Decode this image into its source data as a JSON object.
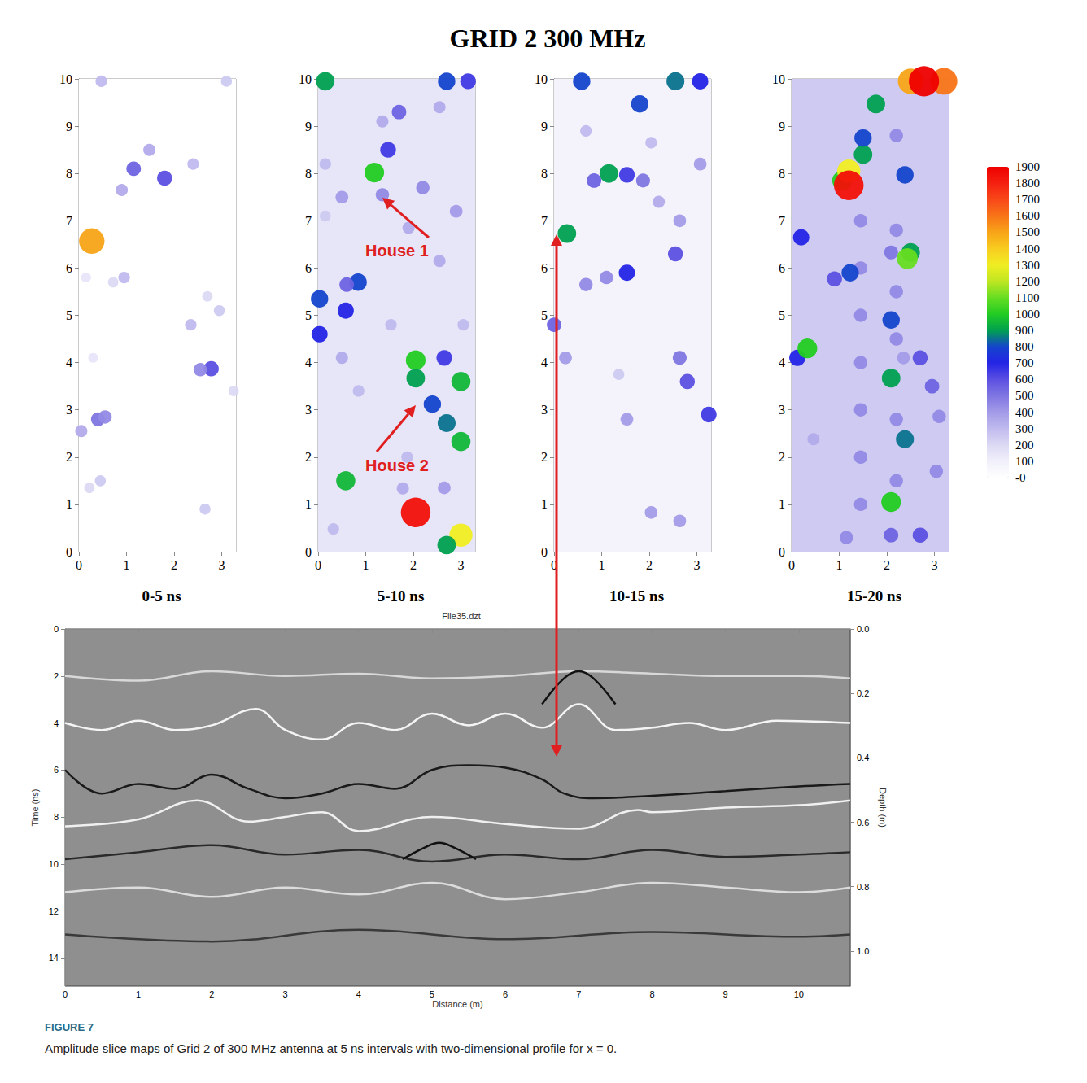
{
  "title": "GRID 2 300 MHz",
  "color_bar": {
    "range": [
      0,
      1900
    ],
    "ticks": [
      1900,
      1800,
      1700,
      1600,
      1500,
      1400,
      1300,
      1200,
      1100,
      1000,
      900,
      800,
      700,
      600,
      500,
      400,
      300,
      200,
      100,
      {
        "value": 0,
        "label": "-0"
      }
    ]
  },
  "chart_data": [
    {
      "type": "heatmap",
      "title": "0-5 ns",
      "xlim": [
        0,
        3.3
      ],
      "ylim": [
        0,
        10
      ],
      "xticks": [
        0,
        1,
        2,
        3
      ],
      "yticks": [
        0,
        1,
        2,
        3,
        4,
        5,
        6,
        7,
        8,
        9,
        10
      ],
      "background": 0,
      "points": [
        [
          0.27,
          6.57,
          1500
        ],
        [
          1.15,
          8.1,
          550
        ],
        [
          1.8,
          7.9,
          600
        ],
        [
          1.48,
          8.5,
          350
        ],
        [
          0.9,
          7.65,
          350
        ],
        [
          2.4,
          8.2,
          300
        ],
        [
          2.78,
          3.87,
          600
        ],
        [
          2.55,
          3.85,
          450
        ],
        [
          0.4,
          2.8,
          500
        ],
        [
          0.05,
          2.55,
          350
        ],
        [
          0.55,
          2.85,
          450
        ],
        [
          0.45,
          1.5,
          250
        ],
        [
          0.22,
          1.35,
          200
        ],
        [
          0.95,
          5.8,
          300
        ],
        [
          0.72,
          5.7,
          200
        ],
        [
          2.35,
          4.8,
          300
        ],
        [
          2.95,
          5.1,
          250
        ],
        [
          2.7,
          5.4,
          200
        ],
        [
          2.65,
          0.9,
          250
        ],
        [
          0.47,
          9.95,
          300
        ],
        [
          3.1,
          9.95,
          250
        ],
        [
          0.15,
          5.8,
          150
        ],
        [
          0.3,
          4.1,
          150
        ],
        [
          3.25,
          3.4,
          200
        ]
      ]
    },
    {
      "type": "heatmap",
      "title": "5-10 ns",
      "xlim": [
        0,
        3.3
      ],
      "ylim": [
        0,
        10
      ],
      "xticks": [
        0,
        1,
        2,
        3
      ],
      "yticks": [
        0,
        1,
        2,
        3,
        4,
        5,
        6,
        7,
        8,
        9,
        10
      ],
      "background": 150,
      "annotations": [
        "House 1",
        "House 2"
      ],
      "points": [
        [
          0.5,
          7.5,
          400
        ],
        [
          2.2,
          7.7,
          450
        ],
        [
          2.55,
          9.4,
          350
        ],
        [
          2.9,
          7.2,
          400
        ],
        [
          1.35,
          7.55,
          450
        ],
        [
          1.9,
          6.85,
          350
        ],
        [
          0.5,
          4.1,
          350
        ],
        [
          0.85,
          3.4,
          300
        ],
        [
          1.53,
          4.8,
          300
        ],
        [
          1.87,
          2.0,
          300
        ],
        [
          0.32,
          0.48,
          300
        ],
        [
          2.55,
          6.15,
          350
        ],
        [
          1.78,
          1.34,
          350
        ],
        [
          1.35,
          9.1,
          350
        ],
        [
          0.15,
          8.2,
          300
        ],
        [
          2.65,
          1.35,
          400
        ],
        [
          0.15,
          7.1,
          250
        ],
        [
          3.05,
          4.8,
          300
        ],
        [
          2.05,
          0.83,
          1850
        ],
        [
          3.0,
          0.35,
          1300
        ],
        [
          2.7,
          0.14,
          900
        ],
        [
          2.05,
          4.05,
          1000
        ],
        [
          2.05,
          3.67,
          900
        ],
        [
          2.4,
          3.12,
          800
        ],
        [
          2.65,
          4.1,
          650
        ],
        [
          3.0,
          3.6,
          950
        ],
        [
          2.7,
          2.72,
          850
        ],
        [
          3.0,
          2.33,
          950
        ],
        [
          1.18,
          8.02,
          1000
        ],
        [
          1.47,
          8.5,
          650
        ],
        [
          1.7,
          9.3,
          550
        ],
        [
          0.84,
          5.7,
          800
        ],
        [
          0.6,
          5.65,
          550
        ],
        [
          0.58,
          5.1,
          700
        ],
        [
          0.03,
          5.35,
          800
        ],
        [
          0.03,
          4.6,
          700
        ],
        [
          0.58,
          1.5,
          950
        ],
        [
          0.15,
          9.95,
          900
        ],
        [
          2.7,
          9.95,
          800
        ],
        [
          3.15,
          9.95,
          650
        ]
      ]
    },
    {
      "type": "heatmap",
      "title": "10-15 ns",
      "xlim": [
        0,
        3.3
      ],
      "ylim": [
        0,
        10
      ],
      "xticks": [
        0,
        1,
        2,
        3
      ],
      "yticks": [
        0,
        1,
        2,
        3,
        4,
        5,
        6,
        7,
        8,
        9,
        10
      ],
      "background": 80,
      "points": [
        [
          3.07,
          8.2,
          400
        ],
        [
          2.64,
          7.0,
          400
        ],
        [
          2.2,
          7.4,
          350
        ],
        [
          0.67,
          8.9,
          300
        ],
        [
          2.04,
          8.65,
          300
        ],
        [
          1.36,
          3.75,
          250
        ],
        [
          0.27,
          6.73,
          900
        ],
        [
          1.15,
          8.0,
          900
        ],
        [
          1.53,
          7.97,
          650
        ],
        [
          0.84,
          7.85,
          550
        ],
        [
          1.87,
          7.85,
          500
        ],
        [
          1.8,
          9.47,
          800
        ],
        [
          0.58,
          9.95,
          800
        ],
        [
          2.55,
          9.95,
          850
        ],
        [
          3.07,
          9.95,
          700
        ],
        [
          1.53,
          5.9,
          700
        ],
        [
          1.1,
          5.8,
          450
        ],
        [
          0.67,
          5.65,
          450
        ],
        [
          2.55,
          6.3,
          600
        ],
        [
          0,
          4.8,
          550
        ],
        [
          0.24,
          4.1,
          400
        ],
        [
          2.8,
          3.6,
          600
        ],
        [
          2.64,
          4.1,
          500
        ],
        [
          3.25,
          2.9,
          650
        ],
        [
          1.53,
          2.8,
          400
        ],
        [
          2.04,
          0.83,
          400
        ],
        [
          2.64,
          0.65,
          400
        ]
      ]
    },
    {
      "type": "heatmap",
      "title": "15-20 ns",
      "xlim": [
        0,
        3.3
      ],
      "ylim": [
        0,
        10
      ],
      "xticks": [
        0,
        1,
        2,
        3
      ],
      "yticks": [
        0,
        1,
        2,
        3,
        4,
        5,
        6,
        7,
        8,
        9,
        10
      ],
      "background": 250,
      "points": [
        [
          1.45,
          1,
          450
        ],
        [
          1.45,
          2,
          450
        ],
        [
          1.45,
          3,
          450
        ],
        [
          1.45,
          4,
          450
        ],
        [
          1.45,
          5,
          450
        ],
        [
          1.45,
          6,
          450
        ],
        [
          1.45,
          7,
          450
        ],
        [
          2.2,
          1.5,
          450
        ],
        [
          2.2,
          2.8,
          450
        ],
        [
          2.2,
          4.5,
          450
        ],
        [
          2.2,
          5.5,
          450
        ],
        [
          2.2,
          6.8,
          450
        ],
        [
          2.2,
          8.8,
          450
        ],
        [
          1.15,
          0.3,
          450
        ],
        [
          2.09,
          6.33,
          500
        ],
        [
          0.46,
          2.38,
          350
        ],
        [
          3.04,
          1.7,
          450
        ],
        [
          2.35,
          4.1,
          400
        ],
        [
          1.06,
          7.85,
          1000
        ],
        [
          1.2,
          8.05,
          1300
        ],
        [
          1.2,
          7.75,
          1850
        ],
        [
          1.5,
          8.4,
          900
        ],
        [
          1.5,
          8.75,
          800
        ],
        [
          1.77,
          9.47,
          900
        ],
        [
          2.5,
          9.95,
          1500
        ],
        [
          3.2,
          9.95,
          1600
        ],
        [
          2.78,
          9.95,
          1900
        ],
        [
          2.38,
          7.97,
          800
        ],
        [
          2.5,
          6.33,
          900
        ],
        [
          2.43,
          6.2,
          1100
        ],
        [
          1.23,
          5.9,
          800
        ],
        [
          0.9,
          5.77,
          600
        ],
        [
          0.2,
          6.65,
          700
        ],
        [
          0.12,
          4.1,
          700
        ],
        [
          0.33,
          4.3,
          1000
        ],
        [
          2.09,
          4.9,
          800
        ],
        [
          2.09,
          3.67,
          900
        ],
        [
          2.38,
          2.38,
          850
        ],
        [
          2.09,
          1.05,
          1000
        ],
        [
          2.7,
          4.1,
          600
        ],
        [
          2.95,
          3.5,
          550
        ],
        [
          3.1,
          2.86,
          450
        ],
        [
          2.7,
          0.35,
          600
        ],
        [
          2.09,
          0.35,
          550
        ]
      ]
    },
    {
      "type": "line",
      "title": "File35.dzt",
      "x_label": "Distance (m)",
      "y_label": "Time (ns)",
      "y2_label": "Depth (m)",
      "xlim": [
        0,
        10.7
      ],
      "xticks": [
        0,
        1,
        2,
        3,
        4,
        5,
        6,
        7,
        8,
        9,
        10
      ],
      "ylim": [
        0,
        15.2
      ],
      "yticks": [
        0,
        2,
        4,
        6,
        8,
        10,
        12,
        14
      ],
      "y2lim": [
        0,
        1.109
      ],
      "y2ticks": [
        {
          "value": 0,
          "label": "0.0"
        },
        0.2,
        0.4,
        0.6,
        0.8,
        {
          "value": 1,
          "label": "1.0"
        }
      ],
      "series": [
        {
          "color": "#d8d8d8",
          "values": [
            [
              0,
              2
            ],
            [
              1,
              2.2
            ],
            [
              2,
              1.8
            ],
            [
              3,
              2.0
            ],
            [
              4,
              1.9
            ],
            [
              5,
              2.1
            ],
            [
              6,
              2.0
            ],
            [
              7,
              1.8
            ],
            [
              8,
              1.9
            ],
            [
              9,
              2.0
            ],
            [
              10,
              2.0
            ],
            [
              10.7,
              2.1
            ]
          ]
        },
        {
          "color": "#f4f4f4",
          "values": [
            [
              0,
              4.0
            ],
            [
              0.5,
              4.3
            ],
            [
              1,
              3.9
            ],
            [
              1.5,
              4.3
            ],
            [
              2,
              4.1
            ],
            [
              2.6,
              3.4
            ],
            [
              3,
              4.3
            ],
            [
              3.5,
              4.7
            ],
            [
              4,
              4.0
            ],
            [
              4.5,
              4.3
            ],
            [
              5,
              3.6
            ],
            [
              5.5,
              4.1
            ],
            [
              6,
              3.6
            ],
            [
              6.5,
              4.2
            ],
            [
              7,
              3.2
            ],
            [
              7.5,
              4.3
            ],
            [
              8,
              4.2
            ],
            [
              8.5,
              4.0
            ],
            [
              9,
              4.3
            ],
            [
              9.7,
              3.9
            ],
            [
              10.7,
              4.0
            ]
          ]
        },
        {
          "color": "#1a1a1a",
          "values": [
            [
              0,
              6.0
            ],
            [
              0.5,
              7.0
            ],
            [
              1,
              6.6
            ],
            [
              1.5,
              6.8
            ],
            [
              2,
              6.2
            ],
            [
              2.5,
              6.8
            ],
            [
              3,
              7.2
            ],
            [
              3.5,
              7.0
            ],
            [
              4,
              6.6
            ],
            [
              4.5,
              6.8
            ],
            [
              5,
              6.0
            ],
            [
              5.5,
              5.8
            ],
            [
              6,
              5.9
            ],
            [
              6.5,
              6.4
            ],
            [
              6.8,
              7.0
            ],
            [
              7.2,
              7.2
            ],
            [
              8,
              7.1
            ],
            [
              9,
              6.9
            ],
            [
              10,
              6.7
            ],
            [
              10.7,
              6.6
            ]
          ]
        },
        {
          "color": "#f0f0f0",
          "values": [
            [
              0,
              8.4
            ],
            [
              1,
              8.1
            ],
            [
              1.8,
              7.3
            ],
            [
              2.5,
              8.2
            ],
            [
              3,
              8.0
            ],
            [
              3.5,
              7.8
            ],
            [
              4,
              8.6
            ],
            [
              5,
              8.0
            ],
            [
              6,
              8.3
            ],
            [
              7,
              8.5
            ],
            [
              7.8,
              7.7
            ],
            [
              8,
              7.8
            ],
            [
              9,
              7.6
            ],
            [
              10,
              7.5
            ],
            [
              10.7,
              7.3
            ]
          ]
        },
        {
          "color": "#2a2a2a",
          "values": [
            [
              0,
              9.8
            ],
            [
              1,
              9.5
            ],
            [
              2,
              9.2
            ],
            [
              3,
              9.6
            ],
            [
              4,
              9.4
            ],
            [
              5,
              9.9
            ],
            [
              6,
              9.6
            ],
            [
              7,
              9.8
            ],
            [
              8,
              9.4
            ],
            [
              9,
              9.7
            ],
            [
              10,
              9.6
            ],
            [
              10.7,
              9.5
            ]
          ]
        },
        {
          "color": "#dcdcdc",
          "values": [
            [
              0,
              11.2
            ],
            [
              1,
              11.0
            ],
            [
              2,
              11.4
            ],
            [
              3,
              11.0
            ],
            [
              4,
              11.3
            ],
            [
              5,
              10.8
            ],
            [
              6,
              11.5
            ],
            [
              7,
              11.2
            ],
            [
              8,
              10.8
            ],
            [
              9,
              11.0
            ],
            [
              10,
              11.2
            ],
            [
              10.7,
              11.0
            ]
          ]
        },
        {
          "color": "#3a3a3a",
          "values": [
            [
              0,
              13
            ],
            [
              2,
              13.3
            ],
            [
              4,
              12.8
            ],
            [
              6,
              13.2
            ],
            [
              8,
              12.9
            ],
            [
              10,
              13.1
            ],
            [
              10.7,
              13
            ]
          ]
        },
        {
          "color": "#111111",
          "values": [
            [
              6.5,
              3.2
            ],
            [
              6.8,
              2.1
            ],
            [
              7,
              1.8
            ],
            [
              7.2,
              2.1
            ],
            [
              7.5,
              3.2
            ]
          ]
        },
        {
          "color": "#111111",
          "values": [
            [
              4.6,
              9.8
            ],
            [
              4.9,
              9.3
            ],
            [
              5.1,
              9.1
            ],
            [
              5.3,
              9.3
            ],
            [
              5.6,
              9.8
            ]
          ]
        }
      ]
    }
  ],
  "caption": {
    "label": "FIGURE 7",
    "text": "Amplitude slice maps of Grid 2 of 300 MHz antenna at 5 ns intervals with two-dimensional profile for x = 0."
  }
}
